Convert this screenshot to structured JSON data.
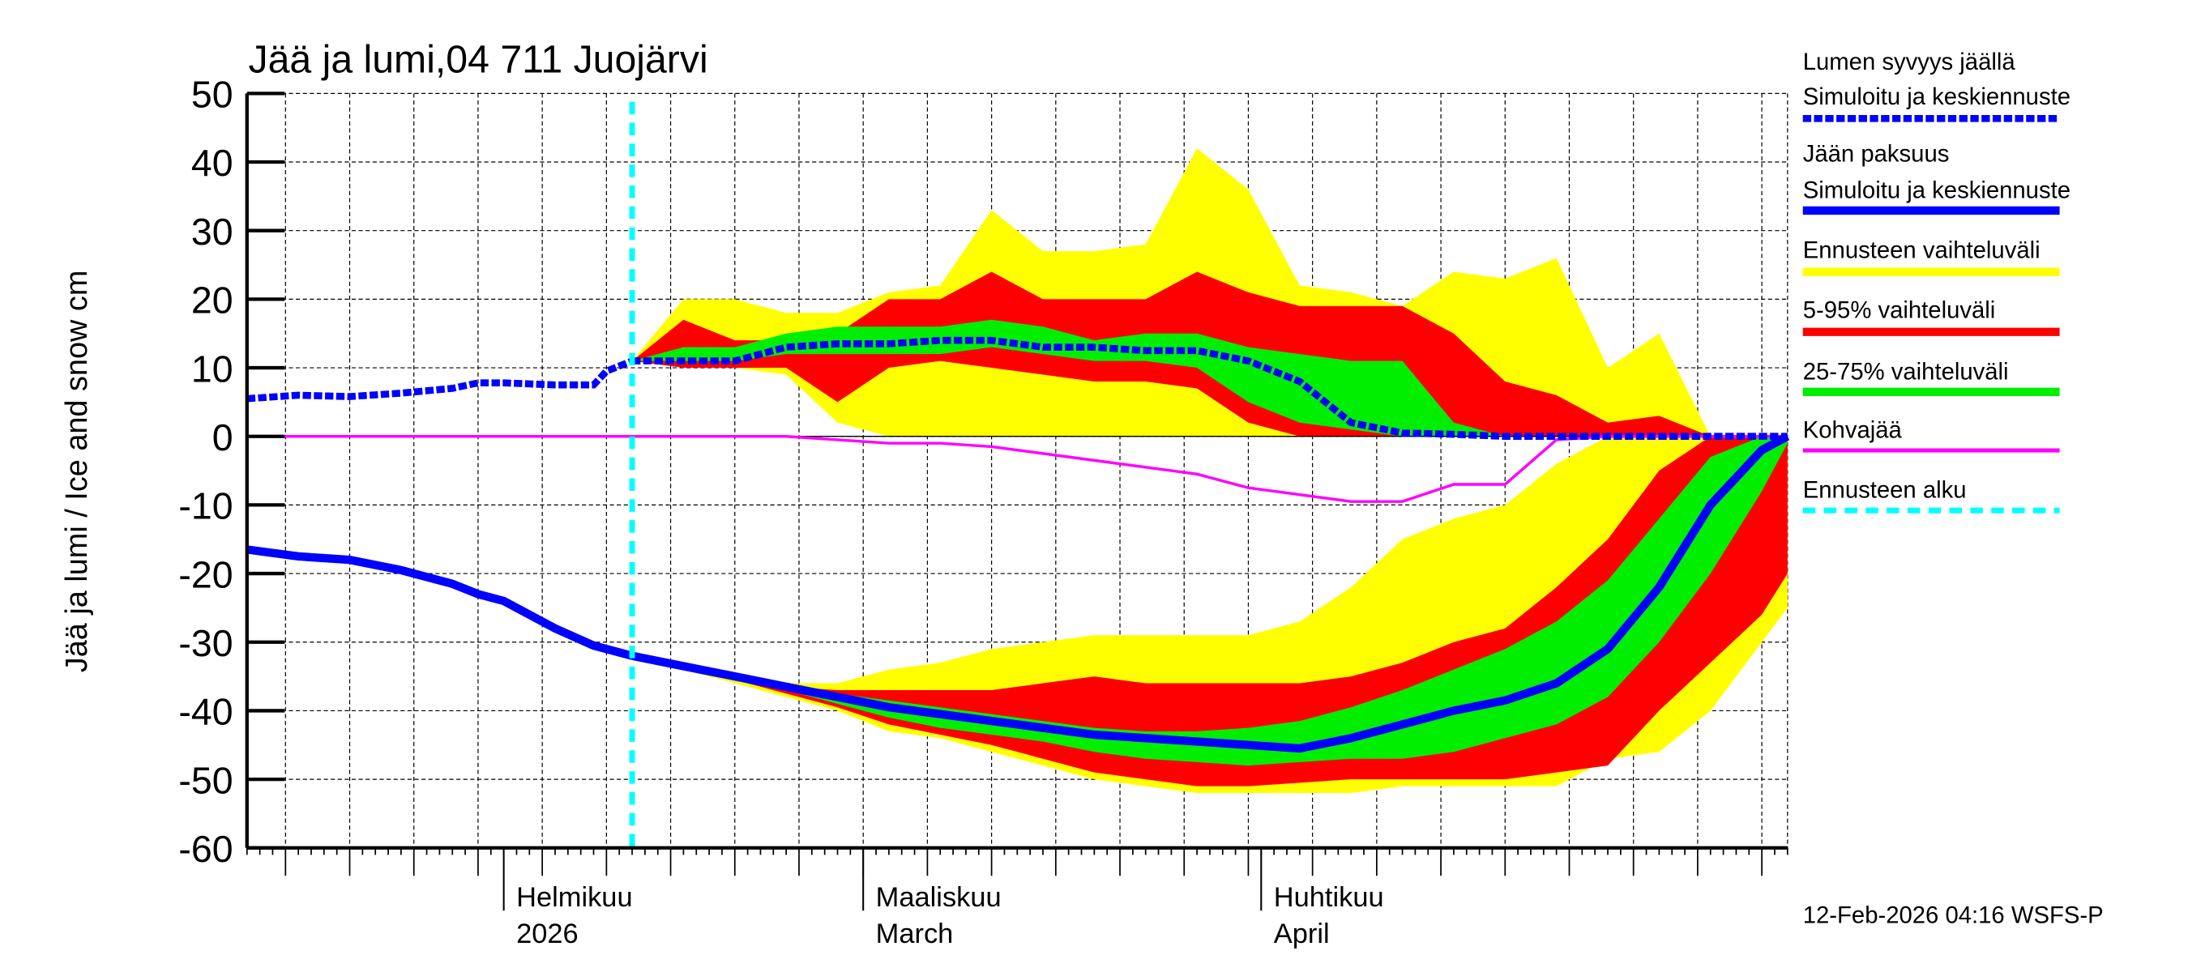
{
  "chart_data": {
    "type": "area",
    "title": "Jää ja lumi,04 711 Juojärvi",
    "ylabel": "Jää ja lumi / Ice and snow    cm",
    "ylim": [
      -60,
      50
    ],
    "yticks": [
      "50",
      "40",
      "30",
      "20",
      "10",
      "0",
      "-10",
      "-20",
      "-30",
      "-40",
      "-50",
      "-60"
    ],
    "xlim": [
      "2026-01-12",
      "2026-05-12"
    ],
    "grid": true,
    "legend_placement": "right",
    "month_labels": [
      {
        "date": "2026-02-01",
        "line1": "Helmikuu",
        "line2": "2026"
      },
      {
        "date": "2026-03-01",
        "line1": "Maaliskuu",
        "line2": "March"
      },
      {
        "date": "2026-04-01",
        "line1": "Huhtikuu",
        "line2": "April"
      }
    ],
    "forecast_start": "2026-02-11",
    "colors": {
      "snow": "#0000ff",
      "ice": "#0000ff",
      "range": "#ffff00",
      "p5_95": "#ff0000",
      "p25_75": "#00ee00",
      "slush": "#ff00ff",
      "forecast_start": "#00ffff"
    },
    "history": {
      "dates": [
        "2026-01-12",
        "2026-01-16",
        "2026-01-20",
        "2026-01-24",
        "2026-01-28",
        "2026-01-30",
        "2026-02-01",
        "2026-02-05",
        "2026-02-08",
        "2026-02-09",
        "2026-02-11"
      ],
      "snow": [
        5.5,
        6,
        5.8,
        6.3,
        7,
        7.8,
        7.8,
        7.5,
        7.5,
        9.5,
        11
      ],
      "ice": [
        -16.5,
        -17.5,
        -18,
        -19.5,
        -21.5,
        -23,
        -24,
        -28,
        -30.5,
        -31,
        -32
      ],
      "slush": [
        0,
        0,
        0,
        0,
        0,
        0,
        0,
        0,
        0,
        0,
        0
      ]
    },
    "forecast": {
      "dates": [
        "2026-02-11",
        "2026-02-15",
        "2026-02-19",
        "2026-02-23",
        "2026-02-27",
        "2026-03-03",
        "2026-03-07",
        "2026-03-11",
        "2026-03-15",
        "2026-03-19",
        "2026-03-23",
        "2026-03-27",
        "2026-03-31",
        "2026-04-04",
        "2026-04-08",
        "2026-04-12",
        "2026-04-16",
        "2026-04-20",
        "2026-04-24",
        "2026-04-28",
        "2026-05-02",
        "2026-05-06",
        "2026-05-10",
        "2026-05-12"
      ],
      "snow": {
        "median": [
          11,
          11,
          11,
          13,
          13.5,
          13.5,
          14,
          14,
          13,
          13,
          12.5,
          12.5,
          11,
          8,
          2,
          0.5,
          0.3,
          0,
          0,
          0,
          0,
          0,
          0,
          0
        ],
        "range_hi": [
          11,
          20,
          20,
          18,
          18,
          21,
          22,
          33,
          27,
          27,
          28,
          42,
          36,
          22,
          21,
          19,
          24,
          23,
          26,
          10,
          15,
          0,
          0,
          0
        ],
        "range_lo": [
          11,
          10,
          10,
          9,
          2,
          0,
          0,
          0,
          0,
          0,
          0,
          0,
          0,
          0,
          0,
          0,
          0,
          0,
          0,
          0,
          0,
          0,
          0,
          0
        ],
        "p95": [
          11,
          17,
          14,
          14,
          15,
          20,
          20,
          24,
          20,
          20,
          20,
          24,
          21,
          19,
          19,
          19,
          15,
          8,
          6,
          2,
          3,
          0,
          0,
          0
        ],
        "p5": [
          11,
          10,
          10,
          10,
          5,
          10,
          11,
          10,
          9,
          8,
          8,
          7,
          2,
          0,
          0,
          0,
          0,
          0,
          0,
          0,
          0,
          0,
          0,
          0
        ],
        "p75": [
          11,
          13,
          13,
          15,
          16,
          16,
          16,
          17,
          16,
          14,
          15,
          15,
          13,
          12,
          11,
          11,
          2,
          0,
          0,
          0,
          0,
          0,
          0,
          0
        ],
        "p25": [
          11,
          11,
          11,
          12,
          12,
          12,
          12,
          13,
          12,
          11,
          11,
          10,
          5,
          2,
          1,
          0,
          0,
          0,
          0,
          0,
          0,
          0,
          0,
          0
        ]
      },
      "ice": {
        "median": [
          -32,
          -33.5,
          -35,
          -36.5,
          -38,
          -39.5,
          -40.5,
          -41.5,
          -42.5,
          -43.5,
          -44,
          -44.5,
          -45,
          -45.5,
          -44,
          -42,
          -40,
          -38.5,
          -36,
          -31,
          -22,
          -10,
          -2,
          0
        ],
        "range_hi": [
          -32,
          -33,
          -35,
          -36,
          -36,
          -34,
          -33,
          -31,
          -30,
          -29,
          -29,
          -29,
          -29,
          -27,
          -22,
          -15,
          -12,
          -10,
          -4,
          0,
          0,
          0,
          0,
          0
        ],
        "range_lo": [
          -32,
          -34,
          -36,
          -38,
          -40,
          -43,
          -44,
          -46,
          -48,
          -50,
          -51,
          -52,
          -52,
          -52,
          -52,
          -51,
          -51,
          -51,
          -51,
          -47,
          -46,
          -40,
          -30,
          -25
        ],
        "p95": [
          -32,
          -33.5,
          -35,
          -36.5,
          -37,
          -37,
          -37,
          -37,
          -36,
          -35,
          -36,
          -36,
          -36,
          -36,
          -35,
          -33,
          -30,
          -28,
          -22,
          -15,
          -5,
          0,
          0,
          0
        ],
        "p5": [
          -32,
          -34,
          -35.5,
          -37.5,
          -39.5,
          -42,
          -43.5,
          -45,
          -47,
          -49,
          -50,
          -51,
          -51,
          -50.5,
          -50,
          -50,
          -50,
          -50,
          -49,
          -48,
          -40,
          -33,
          -26,
          -20
        ],
        "p75": [
          -32,
          -33.5,
          -35,
          -36,
          -37.5,
          -38.5,
          -39.5,
          -40.5,
          -41.5,
          -42.5,
          -43,
          -43,
          -42.5,
          -41.5,
          -39.5,
          -37,
          -34,
          -31,
          -27,
          -21,
          -12,
          -3,
          0,
          0
        ],
        "p25": [
          -32,
          -33.5,
          -35.5,
          -37,
          -39,
          -41,
          -42.5,
          -43.5,
          -44.5,
          -46,
          -47,
          -47.5,
          -48,
          -47.5,
          -47,
          -47,
          -46,
          -44,
          -42,
          -38,
          -30,
          -20,
          -8,
          -1
        ]
      },
      "slush": [
        0,
        0,
        0,
        0,
        -0.5,
        -1,
        -1,
        -1.5,
        -2.5,
        -3.5,
        -4.5,
        -5.5,
        -7.5,
        -8.5,
        -9.5,
        -9.5,
        -7,
        -7,
        -0.5,
        0,
        0,
        0,
        0,
        0
      ]
    },
    "legend": [
      {
        "line1": "Lumen syvyys jäällä",
        "line2": "Simuloitu ja keskiennuste",
        "style": "dotted-blue"
      },
      {
        "line1": "Jään paksuus",
        "line2": "Simuloitu ja keskiennuste",
        "style": "solid-blue"
      },
      {
        "line1": "Ennusteen vaihteluväli",
        "style": "yellow"
      },
      {
        "line1": "5-95% vaihteluväli",
        "style": "red"
      },
      {
        "line1": "25-75% vaihteluväli",
        "style": "green"
      },
      {
        "line1": "Kohvajää",
        "style": "magenta"
      },
      {
        "line1": "Ennusteen alku",
        "style": "cyan-dashed"
      }
    ],
    "footer": "12-Feb-2026 04:16 WSFS-P"
  }
}
